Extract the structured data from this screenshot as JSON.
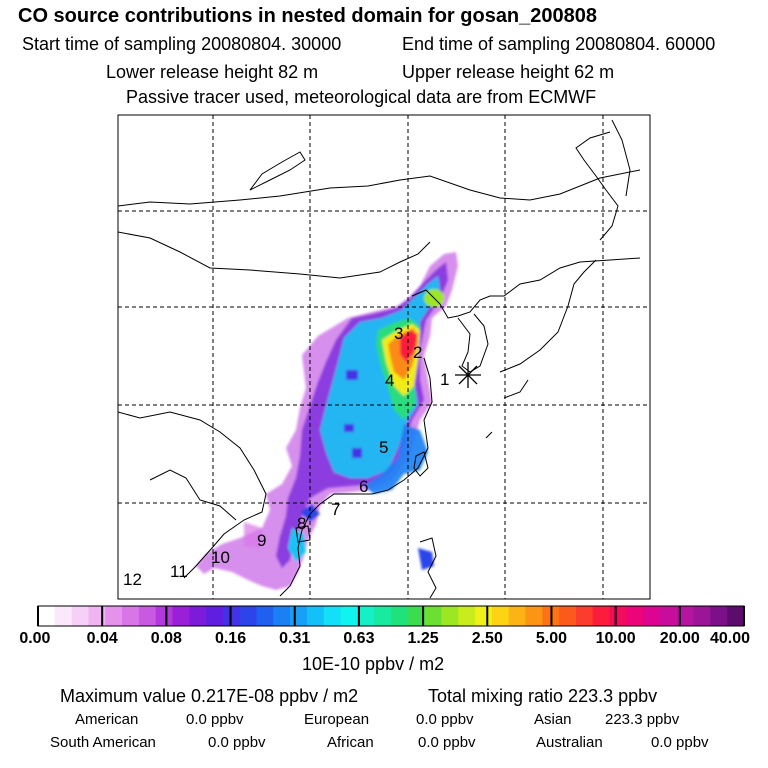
{
  "header": {
    "title": "CO  source contributions in nested domain for gosan_200808",
    "start_label": "Start time of sampling 20080804. 30000",
    "end_label": "End time of sampling 20080804. 60000",
    "lower_label": "Lower release height   82 m",
    "upper_label": "Upper release height   62 m",
    "tracer_label": "Passive tracer used, meteorological data are from ECMWF"
  },
  "chart_data": {
    "type": "heatmap",
    "title": "CO  source contributions in nested domain for gosan_200808",
    "units": "10E-10 ppbv / m2",
    "colorbar_ticks": [
      "0.00",
      "0.04",
      "0.08",
      "0.16",
      "0.31",
      "0.63",
      "1.25",
      "2.50",
      "5.00",
      "10.00",
      "20.00",
      "40.00"
    ],
    "colorbar_colors": [
      "#ffffff",
      "#fbe8fb",
      "#f7d0f7",
      "#f0b4f2",
      "#e592ec",
      "#d876e8",
      "#c85ae2",
      "#b338dd",
      "#9a1fd8",
      "#7c1cda",
      "#5f1ee0",
      "#4430e6",
      "#2c44ea",
      "#1f60f0",
      "#1a80f4",
      "#17a0f8",
      "#14c0f8",
      "#12e0f8",
      "#10f4f0",
      "#14f0c8",
      "#18eaa0",
      "#20e27c",
      "#3cdc50",
      "#6ce032",
      "#9ce624",
      "#c8ec1c",
      "#eef018",
      "#fcd414",
      "#fcb414",
      "#fc9414",
      "#fc7414",
      "#fc5a1c",
      "#fc3c2c",
      "#fc1c3c",
      "#f40c5c",
      "#ec0478",
      "#dc0490",
      "#c80c9c",
      "#b414a0",
      "#9c1498",
      "#7c1088",
      "#5c0c6c"
    ],
    "receptor": {
      "name": "gosan",
      "marker": "asterisk"
    },
    "source_labels": [
      "1",
      "2",
      "3",
      "4",
      "5",
      "6",
      "7",
      "8",
      "9",
      "10",
      "11",
      "12"
    ],
    "gridlines": "dashed"
  },
  "footer": {
    "max_label": "Maximum value  0.217E-08 ppbv / m2",
    "total_label": "Total mixing ratio      223.3 ppbv",
    "american_name": "American",
    "american_value": "0.0 ppbv",
    "european_name": "European",
    "european_value": "0.0 ppbv",
    "asian_name": "Asian",
    "asian_value": "223.3 ppbv",
    "samerican_name": "South American",
    "samerican_value": "0.0 ppbv",
    "african_name": "African",
    "african_value": "0.0 ppbv",
    "australian_name": "Australian",
    "australian_value": "0.0 ppbv"
  }
}
